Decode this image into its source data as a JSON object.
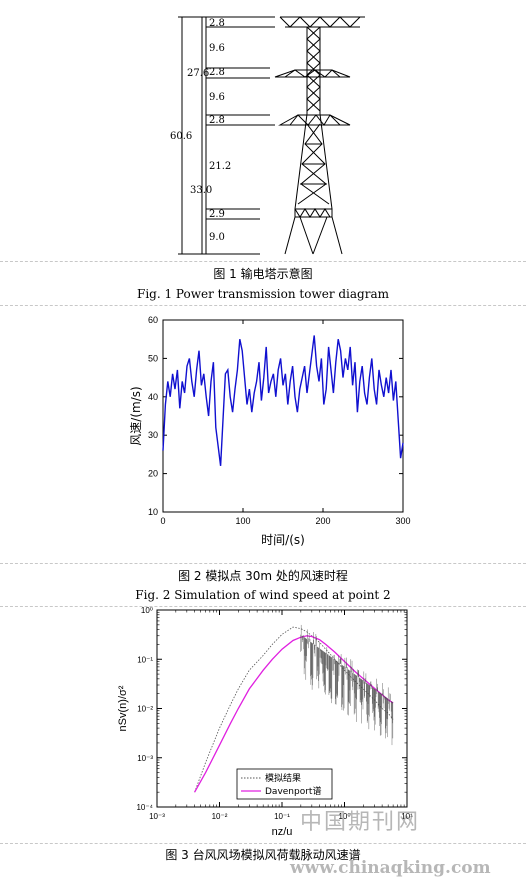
{
  "figure1": {
    "caption_cn": "图 1  输电塔示意图",
    "caption_en": "Fig. 1 Power transmission tower diagram",
    "dims": {
      "total": "60.6",
      "upper": "27.6",
      "lower": "33.0",
      "arm1": "2.8",
      "span1": "9.6",
      "arm2": "2.8",
      "span2": "9.6",
      "arm3": "2.8",
      "span3": "21.2",
      "arm4": "2.9",
      "base": "9.0"
    }
  },
  "figure2": {
    "caption_cn": "图  2  模拟点 30m 处的风速时程",
    "caption_en": "Fig. 2 Simulation of wind speed at point 2",
    "chart_data": {
      "type": "line",
      "xlabel": "时间/(s)",
      "ylabel": "风速/(m/s)",
      "xlim": [
        0,
        300
      ],
      "ylim": [
        10,
        60
      ],
      "xticks": [
        "0",
        "100",
        "200",
        "300"
      ],
      "yticks": [
        "10",
        "20",
        "30",
        "40",
        "50",
        "60"
      ],
      "series_color": "#1010d0",
      "series": [
        {
          "x": [
            0,
            3,
            6,
            9,
            12,
            15,
            18,
            21,
            24,
            27,
            30,
            33,
            36,
            39,
            42,
            45,
            48,
            51,
            54,
            57,
            60,
            63,
            66,
            69,
            72,
            75,
            78,
            81,
            84,
            87,
            90,
            93,
            96,
            99,
            102,
            105,
            108,
            111,
            114,
            117,
            120,
            123,
            126,
            129,
            132,
            135,
            138,
            141,
            144,
            147,
            150,
            153,
            156,
            159,
            162,
            165,
            168,
            171,
            174,
            177,
            180,
            183,
            186,
            189,
            192,
            195,
            198,
            201,
            204,
            207,
            210,
            213,
            216,
            219,
            222,
            225,
            228,
            231,
            234,
            237,
            240,
            243,
            246,
            249,
            252,
            255,
            258,
            261,
            264,
            267,
            270,
            273,
            276,
            279,
            282,
            285,
            288,
            291,
            294,
            297,
            300
          ],
          "values": [
            26,
            38,
            44,
            40,
            46,
            42,
            47,
            37,
            44,
            41,
            48,
            50,
            44,
            40,
            47,
            52,
            43,
            46,
            40,
            35,
            44,
            49,
            32,
            27,
            22,
            34,
            46,
            47,
            40,
            36,
            42,
            47,
            55,
            52,
            45,
            38,
            42,
            36,
            41,
            44,
            49,
            39,
            45,
            53,
            41,
            44,
            46,
            40,
            47,
            50,
            43,
            46,
            38,
            44,
            48,
            40,
            36,
            42,
            45,
            48,
            41,
            46,
            51,
            56,
            48,
            44,
            50,
            38,
            42,
            53,
            47,
            41,
            49,
            55,
            52,
            45,
            50,
            47,
            53,
            43,
            49,
            36,
            44,
            48,
            41,
            38,
            45,
            50,
            42,
            38,
            47,
            43,
            40,
            45,
            41,
            47,
            39,
            44,
            34,
            24,
            28
          ]
        }
      ]
    }
  },
  "figure3": {
    "caption_cn": "图  3  台风风场模拟风荷载脉动风速谱",
    "chart_data": {
      "type": "line",
      "xlabel": "nz/u",
      "ylabel": "nSv(n)/σ²",
      "xscale": "log",
      "yscale": "log",
      "xlim": [
        0.001,
        10
      ],
      "ylim": [
        0.0001,
        1
      ],
      "xticks": [
        "10⁻³",
        "10⁻²",
        "10⁻¹",
        "10⁰",
        "10¹"
      ],
      "yticks": [
        "10⁻⁴",
        "10⁻³",
        "10⁻²",
        "10⁻¹",
        "10⁰"
      ],
      "legend_position": "bottom-left",
      "series": [
        {
          "name": "模拟结果",
          "color": "#555555",
          "x": [
            0.004,
            0.006,
            0.01,
            0.015,
            0.02,
            0.03,
            0.05,
            0.07,
            0.1,
            0.15,
            0.2,
            0.25,
            0.3,
            0.4,
            0.5,
            0.7,
            1,
            1.5,
            2,
            3,
            4,
            5,
            6
          ],
          "values": [
            0.0002,
            0.0008,
            0.004,
            0.012,
            0.025,
            0.06,
            0.12,
            0.2,
            0.32,
            0.45,
            0.42,
            0.36,
            0.3,
            0.22,
            0.16,
            0.1,
            0.06,
            0.035,
            0.025,
            0.015,
            0.01,
            0.008,
            0.006
          ]
        },
        {
          "name": "Davenport谱",
          "color": "#e020e0",
          "x": [
            0.004,
            0.006,
            0.01,
            0.015,
            0.02,
            0.03,
            0.05,
            0.07,
            0.1,
            0.15,
            0.2,
            0.25,
            0.3,
            0.4,
            0.5,
            0.7,
            1,
            1.5,
            2,
            3,
            4,
            5,
            6
          ],
          "values": [
            0.0002,
            0.0005,
            0.0018,
            0.005,
            0.01,
            0.025,
            0.06,
            0.1,
            0.16,
            0.24,
            0.28,
            0.3,
            0.29,
            0.25,
            0.2,
            0.14,
            0.09,
            0.055,
            0.04,
            0.026,
            0.019,
            0.015,
            0.013
          ]
        }
      ]
    }
  },
  "watermark": {
    "cn": "中国期刊网",
    "url": "www.chinaqking.com"
  }
}
